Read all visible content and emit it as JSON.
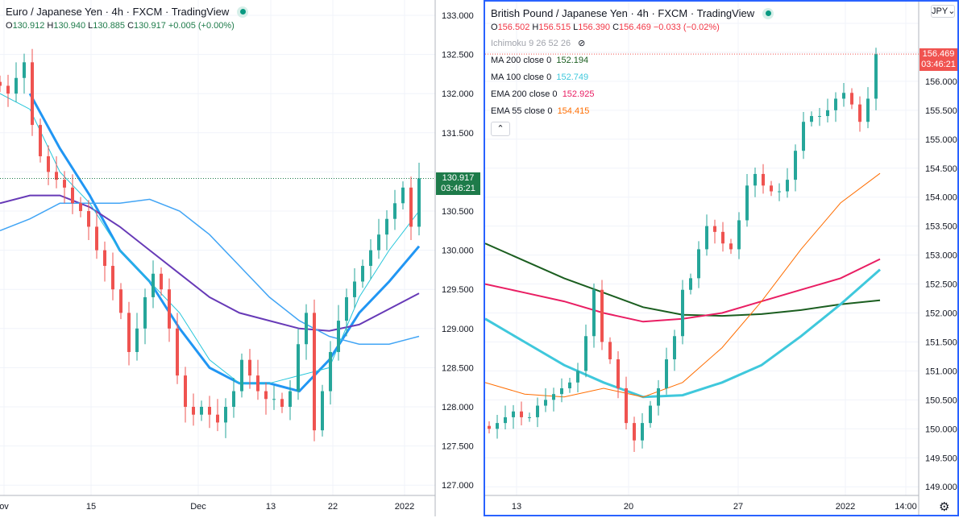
{
  "left": {
    "title": "Euro / Japanese Yen · 4h · FXCM · TradingView",
    "ohlc": {
      "o": "130.912",
      "h": "130.940",
      "l": "130.885",
      "c": "130.917",
      "chg": "+0.005 (+0.00%)"
    },
    "price_tag": "130.917",
    "countdown": "03:46:21",
    "time_labels": [
      "ov",
      "15",
      "Dec",
      "13",
      "22",
      "2022"
    ]
  },
  "right": {
    "title": "British Pound / Japanese Yen · 4h · FXCM · TradingView",
    "ohlc": {
      "o": "156.502",
      "h": "156.515",
      "l": "156.390",
      "c": "156.469",
      "chg": "−0.033 (−0.02%)"
    },
    "ichimoku": "Ichimoku 9 26 52 26",
    "indicators": [
      {
        "label": "MA 200 close 0",
        "value": "152.194",
        "color": "#1b5e20"
      },
      {
        "label": "MA 100 close 0",
        "value": "152.749",
        "color": "#3fc8dc"
      },
      {
        "label": "EMA 200 close 0",
        "value": "152.925",
        "color": "#e91e63"
      },
      {
        "label": "EMA 55 close 0",
        "value": "154.415",
        "color": "#ff6d00"
      }
    ],
    "currency": "JPY",
    "price_tag": "156.469",
    "countdown": "03:46:21",
    "time_labels": [
      "13",
      "20",
      "27",
      "2022",
      "14:00"
    ]
  },
  "chart_data": [
    {
      "type": "candlestick",
      "symbol": "EURJPY",
      "ylim": [
        127,
        133
      ],
      "ytick_step": 0.5,
      "up_color": "#26a69a",
      "down_color": "#ef5350",
      "last": 130.917,
      "closes": [
        132.1,
        132.0,
        132.2,
        132.4,
        131.6,
        131.2,
        131.0,
        130.9,
        130.8,
        130.6,
        130.5,
        130.3,
        130.0,
        129.8,
        129.5,
        129.2,
        128.7,
        129.0,
        129.4,
        129.7,
        129.5,
        129.0,
        128.4,
        128.0,
        127.9,
        128.0,
        127.9,
        127.8,
        128.0,
        128.2,
        128.6,
        128.4,
        128.2,
        128.1,
        128.1,
        128.0,
        128.2,
        128.8,
        129.2,
        127.7,
        128.2,
        128.7,
        129.1,
        129.4,
        129.6,
        129.8,
        130.0,
        130.2,
        130.4,
        130.6,
        130.8,
        130.3,
        130.917
      ],
      "lines": [
        {
          "color": "#2196f3",
          "width": 3,
          "values": [
            null,
            132.0,
            131.3,
            130.7,
            130.0,
            129.6,
            129.0,
            128.5,
            128.3,
            128.3,
            128.2,
            128.6,
            129.2,
            129.6,
            130.05
          ]
        },
        {
          "color": "#673ab7",
          "width": 2,
          "values": [
            130.6,
            130.7,
            130.7,
            130.55,
            130.3,
            130.0,
            129.7,
            129.4,
            129.2,
            129.1,
            129.0,
            128.97,
            129.05,
            129.25,
            129.45
          ]
        },
        {
          "color": "#42a5f5",
          "width": 1.5,
          "values": [
            130.25,
            130.4,
            130.6,
            130.6,
            130.6,
            130.65,
            130.5,
            130.2,
            129.8,
            129.4,
            129.1,
            128.9,
            128.8,
            128.8,
            128.9
          ]
        },
        {
          "color": "#26c6da",
          "width": 1,
          "values": [
            132.0,
            131.8,
            131.0,
            130.6,
            130.0,
            129.6,
            129.2,
            128.6,
            128.3,
            128.3,
            128.4,
            128.5,
            129.4,
            130.0,
            130.5
          ]
        }
      ]
    },
    {
      "type": "candlestick",
      "symbol": "GBPJPY",
      "ylim": [
        149,
        157
      ],
      "ytick_step": 0.5,
      "up_color": "#26a69a",
      "down_color": "#ef5350",
      "last": 156.469,
      "closes": [
        150.0,
        150.1,
        150.2,
        150.3,
        150.2,
        150.2,
        150.4,
        150.5,
        150.6,
        150.7,
        150.8,
        151.0,
        151.6,
        152.4,
        151.5,
        151.2,
        150.7,
        150.1,
        149.8,
        150.1,
        150.4,
        150.7,
        151.2,
        151.6,
        152.4,
        152.6,
        153.1,
        153.5,
        153.4,
        153.2,
        153.1,
        153.6,
        154.2,
        154.4,
        154.2,
        154.1,
        154.1,
        154.3,
        154.8,
        155.3,
        155.4,
        155.4,
        155.5,
        155.7,
        155.8,
        155.6,
        155.3,
        155.7,
        156.469
      ],
      "lines": [
        {
          "name": "MA 200 close 0",
          "color": "#1b5e20",
          "width": 2,
          "values": [
            153.2,
            152.9,
            152.6,
            152.35,
            152.1,
            151.97,
            151.95,
            151.98,
            152.05,
            152.15,
            152.22
          ]
        },
        {
          "name": "MA 100 close 0",
          "color": "#3fc8dc",
          "width": 3,
          "values": [
            151.9,
            151.5,
            151.1,
            150.8,
            150.55,
            150.58,
            150.8,
            151.1,
            151.6,
            152.15,
            152.75
          ]
        },
        {
          "name": "EMA 200 close 0",
          "color": "#e91e63",
          "width": 2,
          "values": [
            152.5,
            152.35,
            152.2,
            152.0,
            151.85,
            151.9,
            152.0,
            152.2,
            152.4,
            152.6,
            152.93
          ]
        },
        {
          "name": "EMA 55 close 0",
          "color": "#ff6d00",
          "width": 1,
          "values": [
            150.8,
            150.6,
            150.55,
            150.7,
            150.55,
            150.8,
            151.4,
            152.2,
            153.1,
            153.9,
            154.41
          ]
        }
      ]
    }
  ]
}
